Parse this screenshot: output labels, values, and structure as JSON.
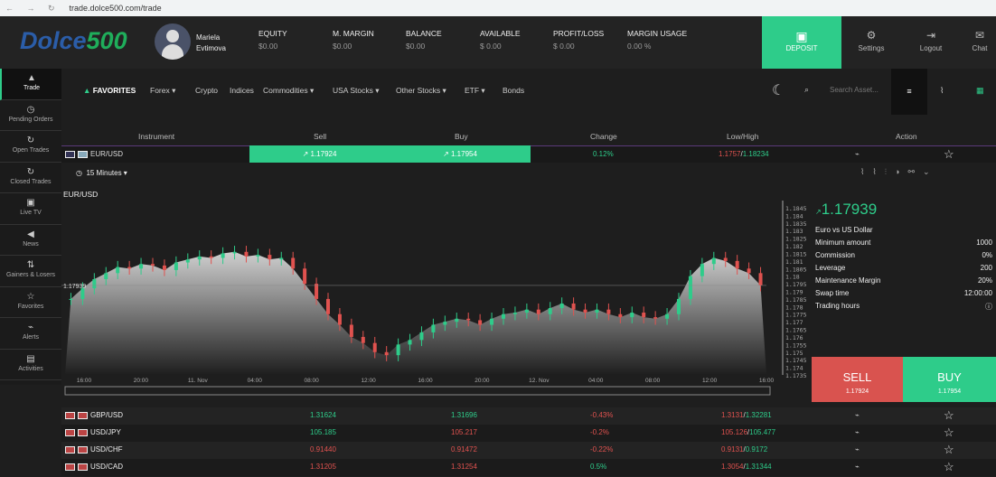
{
  "browser": {
    "url": "trade.dolce500.com/trade"
  },
  "header": {
    "logo_a": "Dolce",
    "logo_b": "500",
    "user_first": "Mariela",
    "user_last": "Evtimova",
    "stats": [
      {
        "label": "EQUITY",
        "value": "$0.00"
      },
      {
        "label": "M. MARGIN",
        "value": "$0.00"
      },
      {
        "label": "BALANCE",
        "value": "$0.00"
      },
      {
        "label": "AVAILABLE",
        "value": "$ 0.00"
      },
      {
        "label": "PROFIT/LOSS",
        "value": "$ 0.00"
      },
      {
        "label": "MARGIN USAGE",
        "value": "0.00 %"
      }
    ],
    "deposit": "DEPOSIT",
    "settings": "Settings",
    "logout": "Logout",
    "chat": "Chat"
  },
  "sidebar": [
    {
      "label": "Trade",
      "icon": "▲"
    },
    {
      "label": "Pending Orders",
      "icon": "◷"
    },
    {
      "label": "Open Trades",
      "icon": "↻"
    },
    {
      "label": "Closed Trades",
      "icon": "↻"
    },
    {
      "label": "Live TV",
      "icon": "▣"
    },
    {
      "label": "News",
      "icon": "◀"
    },
    {
      "label": "Gainers & Losers",
      "icon": "⇅"
    },
    {
      "label": "Favorites",
      "icon": "☆"
    },
    {
      "label": "Alerts",
      "icon": "⌁"
    },
    {
      "label": "Activities",
      "icon": "▤"
    }
  ],
  "nav": {
    "items": [
      "FAVORITES",
      "Forex ▾",
      "Crypto",
      "Indices",
      "Commodities ▾",
      "USA Stocks ▾",
      "Other Stocks ▾",
      "ETF ▾",
      "Bonds"
    ],
    "search_placeholder": "Search Asset..."
  },
  "table": {
    "headers": [
      "Instrument",
      "Sell",
      "Buy",
      "Change",
      "Low/High",
      "Action"
    ],
    "main": {
      "name": "EUR/USD",
      "sell": "↗ 1.17924",
      "buy": "↗ 1.17954",
      "change": "0.12%",
      "low": "1.1757",
      "high": "1.18234"
    },
    "rows": [
      {
        "name": "GBP/USD",
        "sell": "1.31624",
        "buy": "1.31696",
        "change": "-0.43%",
        "low": "1.3131",
        "high": "1.32281",
        "sc": "g",
        "bc": "g",
        "cc": "r"
      },
      {
        "name": "USD/JPY",
        "sell": "105.185",
        "buy": "105.217",
        "change": "-0.2%",
        "low": "105.126",
        "high": "105.477",
        "sc": "g",
        "bc": "r",
        "cc": "r"
      },
      {
        "name": "USD/CHF",
        "sell": "0.91440",
        "buy": "0.91472",
        "change": "-0.22%",
        "low": "0.9131",
        "high": "0.9172",
        "sc": "r",
        "bc": "r",
        "cc": "r"
      },
      {
        "name": "USD/CAD",
        "sell": "1.31205",
        "buy": "1.31254",
        "change": "0.5%",
        "low": "1.3054",
        "high": "1.31344",
        "sc": "r",
        "bc": "r",
        "cc": "g"
      }
    ]
  },
  "chart_toolbar": {
    "interval": "15 Minutes"
  },
  "chart_data": {
    "type": "candlestick",
    "title": "EUR/USD",
    "current_label": "1.17939",
    "ylim": [
      1.1735,
      1.1845
    ],
    "yticks": [
      "1.1845",
      "1.184",
      "1.1835",
      "1.183",
      "1.1825",
      "1.182",
      "1.1815",
      "1.181",
      "1.1805",
      "1.18",
      "1.1795",
      "1.179",
      "1.1785",
      "1.178",
      "1.1775",
      "1.177",
      "1.1765",
      "1.176",
      "1.1755",
      "1.175",
      "1.1745",
      "1.174",
      "1.1735"
    ],
    "xticks": [
      "16:00",
      "20:00",
      "11. Nov",
      "04:00",
      "08:00",
      "12:00",
      "16:00",
      "20:00",
      "12. Nov",
      "04:00",
      "08:00",
      "12:00",
      "16:00"
    ],
    "closes": [
      1.1785,
      1.1792,
      1.1798,
      1.1802,
      1.1806,
      1.1805,
      1.1808,
      1.1807,
      1.1804,
      1.1809,
      1.1811,
      1.1813,
      1.1812,
      1.1815,
      1.1816,
      1.1813,
      1.1814,
      1.1811,
      1.1812,
      1.1805,
      1.1795,
      1.1785,
      1.1775,
      1.1768,
      1.176,
      1.1756,
      1.175,
      1.1748,
      1.1755,
      1.1758,
      1.1763,
      1.1768,
      1.177,
      1.1772,
      1.1771,
      1.1768,
      1.1772,
      1.1775,
      1.1776,
      1.1778,
      1.1775,
      1.1779,
      1.1782,
      1.1778,
      1.1776,
      1.1778,
      1.1775,
      1.1773,
      1.1776,
      1.1773,
      1.1772,
      1.1775,
      1.1785,
      1.18,
      1.1808,
      1.1812,
      1.181,
      1.1805,
      1.1802,
      1.1794
    ]
  },
  "info": {
    "price": "1.17939",
    "name": "Euro vs US Dollar",
    "rows": [
      [
        "Minimum amount",
        "1000"
      ],
      [
        "Commission",
        "0%"
      ],
      [
        "Leverage",
        "200"
      ],
      [
        "Maintenance Margin",
        "20%"
      ],
      [
        "Swap time",
        "12:00:00"
      ],
      [
        "Trading hours",
        "ⓘ"
      ]
    ]
  },
  "trade": {
    "sell": "SELL",
    "sell_price": "1.17924",
    "buy": "BUY",
    "buy_price": "1.17954"
  }
}
